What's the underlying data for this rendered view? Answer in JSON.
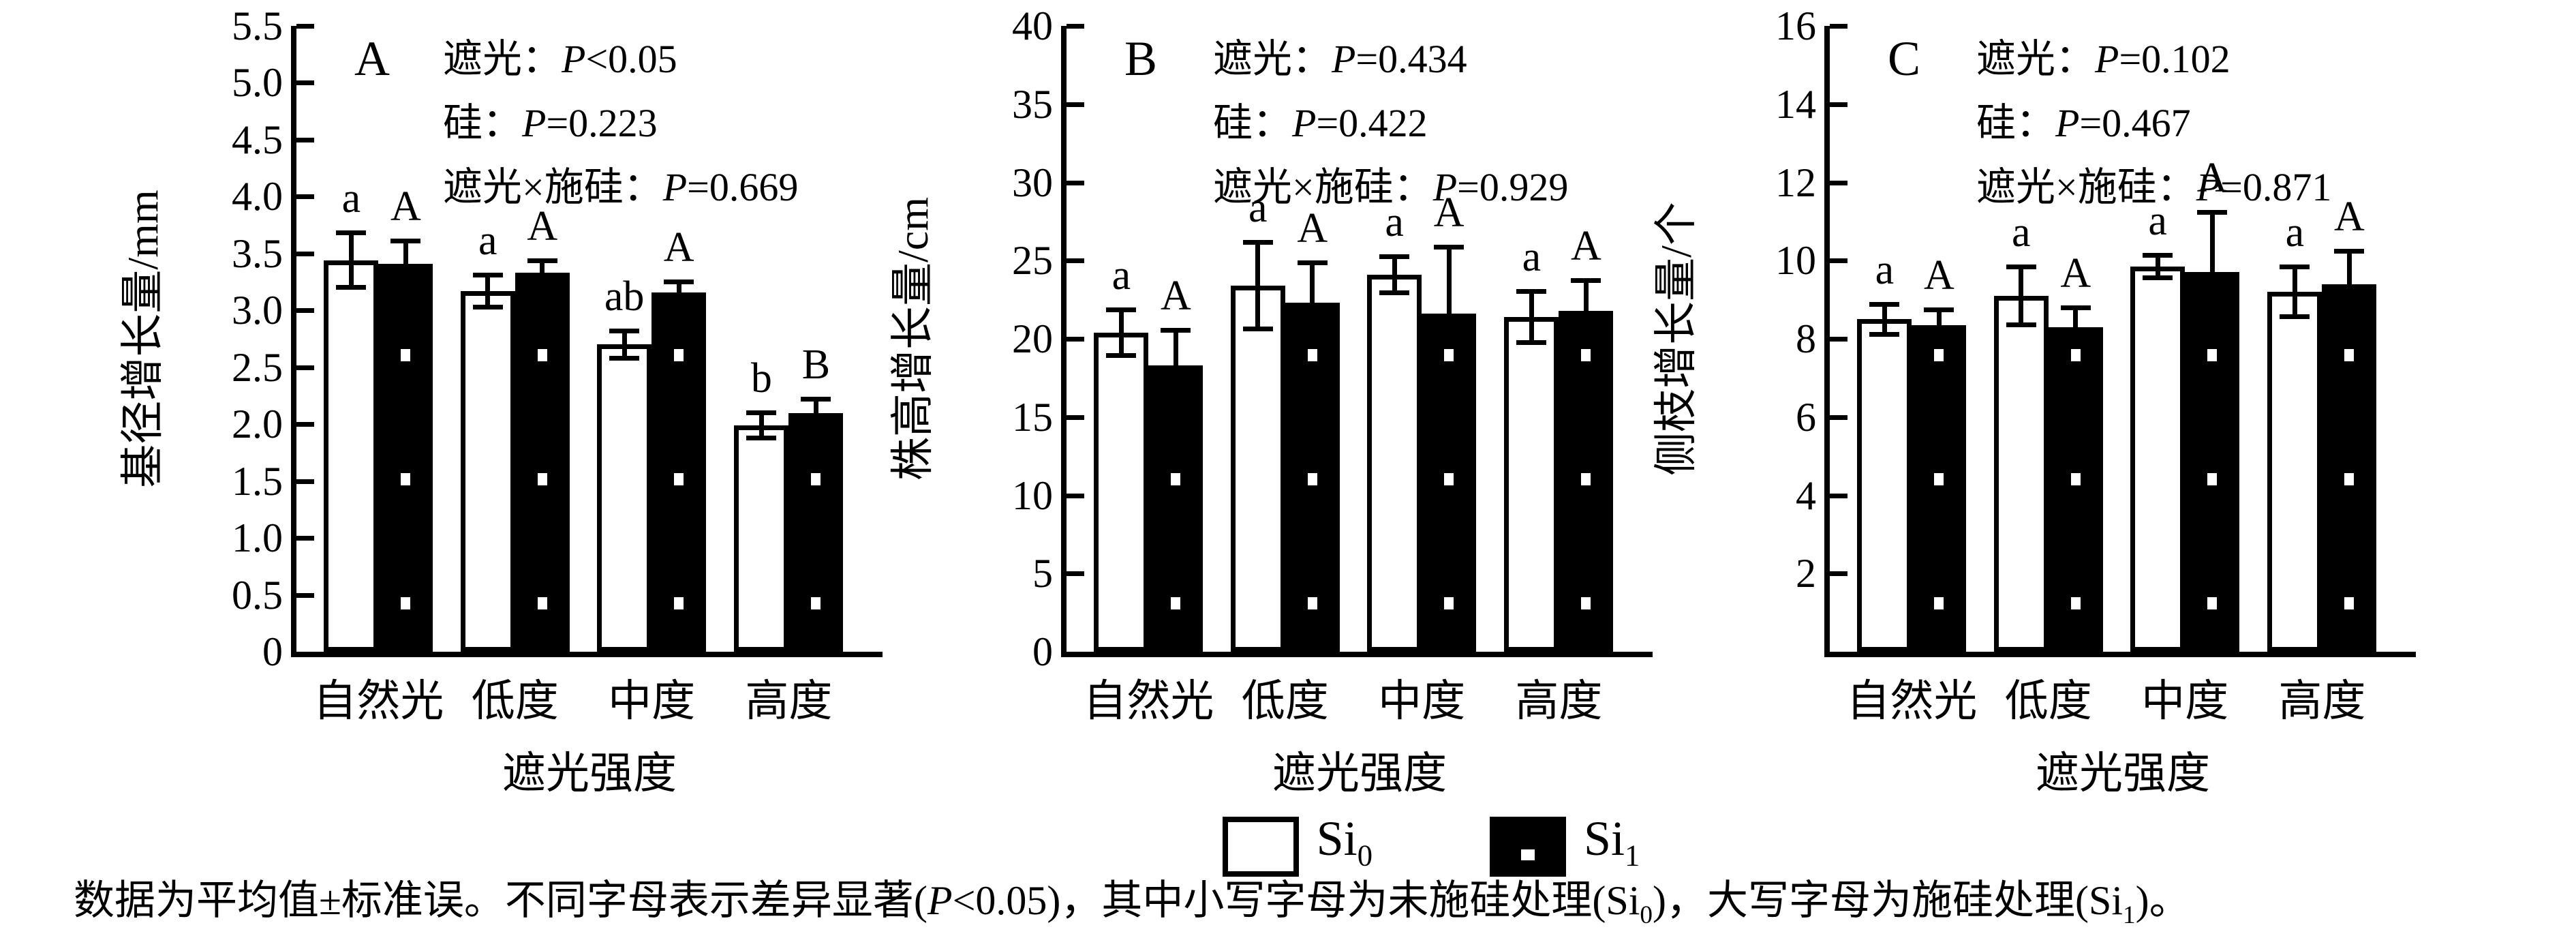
{
  "figure": {
    "caption_parts": [
      {
        "t": "数据为平均值±标准误。不同字母表示差异显著("
      },
      {
        "t": "P",
        "italic": true
      },
      {
        "t": "<0.05)，其中小写字母为未施硅处理(Si"
      },
      {
        "t": "0",
        "sub": true
      },
      {
        "t": ")，大写字母为施硅处理(Si"
      },
      {
        "t": "1",
        "sub": true
      },
      {
        "t": ")。"
      }
    ],
    "colors": {
      "foreground": "#000000",
      "background": "#ffffff"
    }
  },
  "legend": {
    "position": "bottom-center",
    "si0": {
      "text": "Si",
      "sub": "0"
    },
    "si1": {
      "text": "Si",
      "sub": "1"
    }
  },
  "chart_data": [
    {
      "type": "bar",
      "panel_letter": "A",
      "ylabel": "基径增长量/mm",
      "xlabel": "遮光强度",
      "categories": [
        "自然光",
        "低度",
        "中度",
        "高度"
      ],
      "ylim": [
        0,
        5.5
      ],
      "grid": false,
      "ytick_labels": [
        "0",
        "0.5",
        "1.0",
        "1.5",
        "2.0",
        "2.5",
        "3.0",
        "3.5",
        "4.0",
        "4.5",
        "5.0",
        "5.5"
      ],
      "annotations": [
        {
          "factor": "遮光：",
          "p": "P",
          "rel_value": "<0.05"
        },
        {
          "factor": "硅：",
          "p": "P",
          "rel_value": "=0.223"
        },
        {
          "factor": "遮光×施硅：",
          "p": "P",
          "rel_value": "=0.669"
        }
      ],
      "series": [
        {
          "name": "Si0",
          "fill": "white",
          "values": [
            3.44,
            3.17,
            2.7,
            1.99
          ],
          "errors": [
            0.26,
            0.16,
            0.14,
            0.13
          ],
          "letters": [
            "a",
            "a",
            "ab",
            "b"
          ]
        },
        {
          "name": "Si1",
          "fill": "black-dotted",
          "values": [
            3.41,
            3.33,
            3.16,
            2.1
          ],
          "errors": [
            0.22,
            0.13,
            0.11,
            0.14
          ],
          "letters": [
            "A",
            "A",
            "A",
            "B"
          ]
        }
      ]
    },
    {
      "type": "bar",
      "panel_letter": "B",
      "ylabel": "株高增长量/cm",
      "xlabel": "遮光强度",
      "categories": [
        "自然光",
        "低度",
        "中度",
        "高度"
      ],
      "ylim": [
        0,
        40
      ],
      "grid": false,
      "ytick_labels": [
        "0",
        "5",
        "10",
        "15",
        "20",
        "25",
        "30",
        "35",
        "40"
      ],
      "annotations": [
        {
          "factor": "遮光：",
          "p": "P",
          "rel_value": "=0.434"
        },
        {
          "factor": "硅：",
          "p": "P",
          "rel_value": "=0.422"
        },
        {
          "factor": "遮光×施硅：",
          "p": "P",
          "rel_value": "=0.929"
        }
      ],
      "series": [
        {
          "name": "Si0",
          "fill": "white",
          "values": [
            20.4,
            23.4,
            24.1,
            21.4
          ],
          "errors": [
            1.6,
            2.9,
            1.3,
            1.8
          ],
          "letters": [
            "a",
            "a",
            "a",
            "a"
          ]
        },
        {
          "name": "Si1",
          "fill": "black-dotted",
          "values": [
            18.3,
            22.3,
            21.6,
            21.8
          ],
          "errors": [
            2.4,
            2.7,
            4.4,
            2.1
          ],
          "letters": [
            "A",
            "A",
            "A",
            "A"
          ]
        }
      ]
    },
    {
      "type": "bar",
      "panel_letter": "C",
      "ylabel": "侧枝增长量/个",
      "xlabel": "遮光强度",
      "categories": [
        "自然光",
        "低度",
        "中度",
        "高度"
      ],
      "ylim": [
        0,
        16
      ],
      "grid": false,
      "ytick_labels": [
        "2",
        "4",
        "6",
        "8",
        "10",
        "12",
        "14",
        "16"
      ],
      "annotations": [
        {
          "factor": "遮光：",
          "p": "P",
          "rel_value": "=0.102"
        },
        {
          "factor": "硅：",
          "p": "P",
          "rel_value": "=0.467"
        },
        {
          "factor": "遮光×施硅：",
          "p": "P",
          "rel_value": "=0.871"
        }
      ],
      "series": [
        {
          "name": "Si0",
          "fill": "white",
          "values": [
            8.5,
            9.1,
            9.85,
            9.2
          ],
          "errors": [
            0.45,
            0.8,
            0.35,
            0.7
          ],
          "letters": [
            "a",
            "a",
            "a",
            "a"
          ]
        },
        {
          "name": "Si1",
          "fill": "black-dotted",
          "values": [
            8.35,
            8.3,
            9.7,
            9.4
          ],
          "errors": [
            0.45,
            0.55,
            1.6,
            0.9
          ],
          "letters": [
            "A",
            "A",
            "A",
            "A"
          ]
        }
      ]
    }
  ]
}
